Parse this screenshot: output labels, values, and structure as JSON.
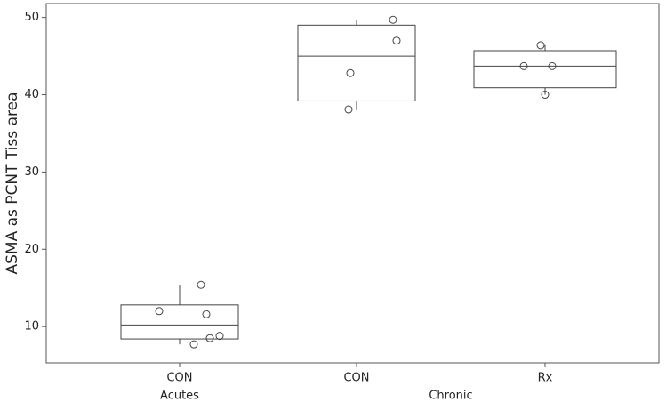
{
  "chart_data": {
    "type": "box",
    "y_label": "ASMA as PCNT Tiss area",
    "groups": [
      {
        "name": "Acutes",
        "categories": [
          "CON"
        ]
      },
      {
        "name": "Chronic",
        "categories": [
          "CON",
          "Rx"
        ]
      }
    ],
    "boxes": [
      {
        "whisker_low": 7.7,
        "q1": 8.4,
        "median": 10.2,
        "q3": 12.8,
        "whisker_high": 15.4,
        "points": [
          15.4,
          12.0,
          11.6,
          8.8,
          8.5,
          7.7
        ]
      },
      {
        "whisker_low": 38.0,
        "q1": 39.2,
        "median": 45.0,
        "q3": 49.0,
        "whisker_high": 49.7,
        "points": [
          49.7,
          47.0,
          42.8,
          38.1
        ]
      },
      {
        "whisker_low": 40.0,
        "q1": 40.9,
        "median": 43.7,
        "q3": 45.7,
        "whisker_high": 46.4,
        "points": [
          46.4,
          43.7,
          43.7,
          40.0
        ]
      }
    ],
    "ylim": [
      5.3,
      51.8
    ],
    "yticks": [
      10,
      20,
      30,
      40,
      50
    ],
    "color": "#444444"
  }
}
